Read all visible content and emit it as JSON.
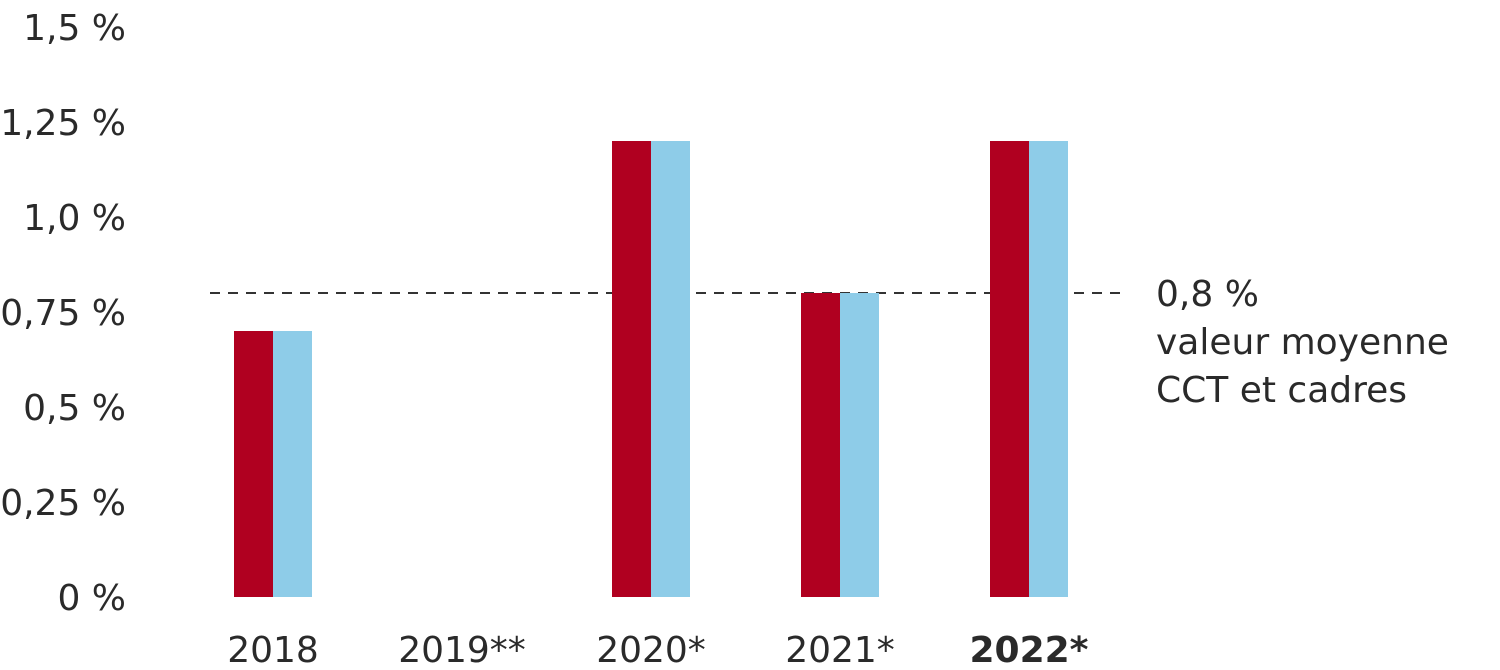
{
  "chart_data": {
    "type": "bar",
    "categories": [
      "2018",
      "2019**",
      "2020*",
      "2021*",
      "2022*"
    ],
    "category_bold": [
      false,
      false,
      false,
      false,
      true
    ],
    "series": [
      {
        "values": [
          0.7,
          0,
          1.2,
          0.8,
          1.2
        ],
        "color": "#b00020"
      },
      {
        "values": [
          0.7,
          0,
          1.2,
          0.8,
          1.2
        ],
        "color": "#8ecce8"
      }
    ],
    "ylim": [
      0,
      1.5
    ],
    "y_ticks": [
      {
        "value": 0,
        "label": "0 %"
      },
      {
        "value": 0.25,
        "label": "0,25 %"
      },
      {
        "value": 0.5,
        "label": "0,5 %"
      },
      {
        "value": 0.75,
        "label": "0,75 %"
      },
      {
        "value": 1.0,
        "label": "1,0 %"
      },
      {
        "value": 1.25,
        "label": "1,25 %"
      },
      {
        "value": 1.5,
        "label": "1,5 %"
      }
    ],
    "reference_line": {
      "value": 0.8,
      "style": "dashed",
      "label_lines": [
        "0,8 %",
        "valeur moyenne",
        "CCT et cadres"
      ]
    },
    "grid": false,
    "legend": "none"
  }
}
